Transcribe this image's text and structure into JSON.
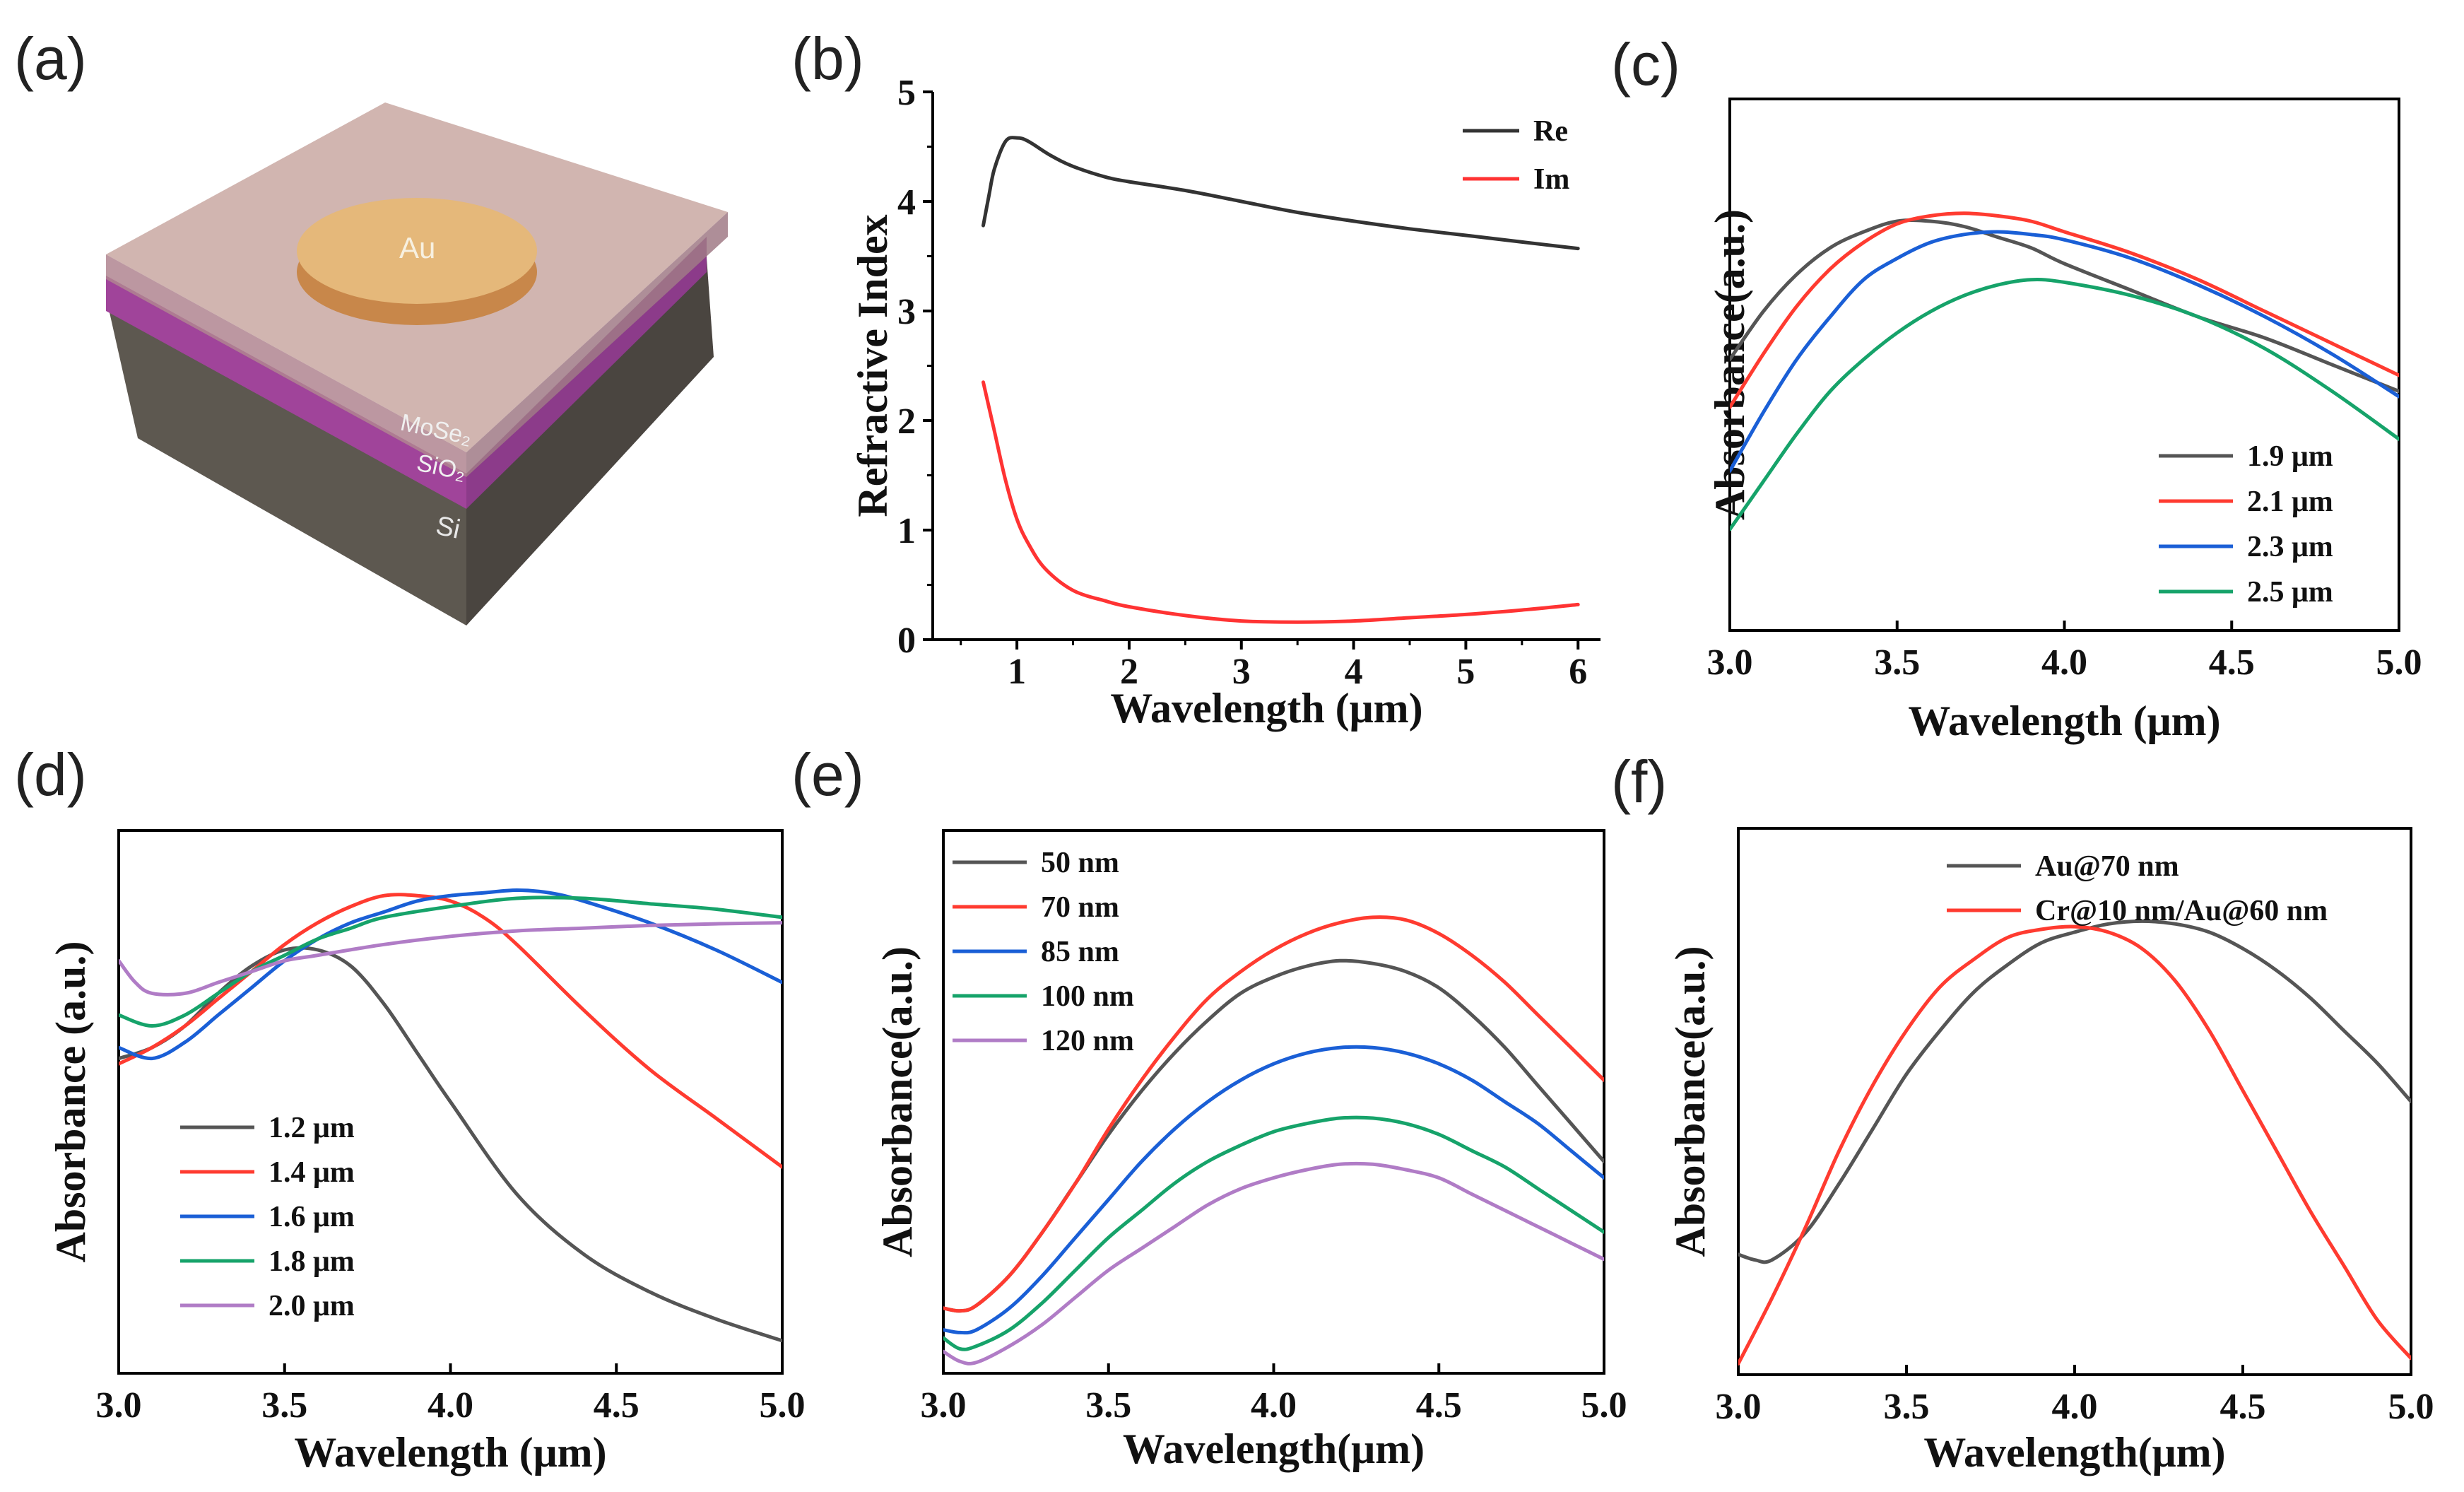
{
  "chart_data": [
    {
      "panel": "(a)",
      "type": "diagram",
      "layer_labels": [
        "Au",
        "MoSe₂",
        "SiO₂",
        "Si"
      ]
    },
    {
      "panel": "(b)",
      "type": "line",
      "xlabel": "Wavelength (μm)",
      "ylabel": "Refractive Index",
      "xlim": [
        0.25,
        6.2
      ],
      "ylim": [
        0,
        5
      ],
      "xticks": [
        1,
        2,
        3,
        4,
        5,
        6
      ],
      "yticks": [
        0,
        1,
        2,
        3,
        4,
        5
      ],
      "legend_position": "top-right",
      "series": [
        {
          "name": "Re",
          "color": "#333333",
          "x": [
            0.7,
            0.75,
            0.8,
            0.9,
            1.0,
            1.1,
            1.3,
            1.5,
            1.8,
            2.0,
            2.5,
            3.0,
            3.5,
            4.0,
            4.5,
            5.0,
            5.5,
            6.0
          ],
          "y": [
            3.78,
            4.05,
            4.3,
            4.55,
            4.58,
            4.55,
            4.42,
            4.32,
            4.22,
            4.18,
            4.1,
            4.0,
            3.9,
            3.82,
            3.75,
            3.69,
            3.63,
            3.57
          ]
        },
        {
          "name": "Im",
          "color": "#ff3333",
          "x": [
            0.7,
            0.8,
            0.9,
            1.0,
            1.1,
            1.25,
            1.5,
            1.8,
            2.0,
            2.5,
            3.0,
            3.5,
            4.0,
            4.5,
            5.0,
            5.5,
            6.0
          ],
          "y": [
            2.35,
            1.9,
            1.45,
            1.1,
            0.88,
            0.65,
            0.45,
            0.35,
            0.3,
            0.22,
            0.17,
            0.16,
            0.17,
            0.2,
            0.23,
            0.27,
            0.32
          ]
        }
      ]
    },
    {
      "panel": "(c)",
      "type": "line",
      "xlabel": "Wavelength (μm)",
      "ylabel": "Absorbance(a.u.)",
      "xlim": [
        3.0,
        5.0
      ],
      "ylim": [
        0,
        1
      ],
      "xticks": [
        "3.0",
        "3.5",
        "4.0",
        "4.5",
        "5.0"
      ],
      "legend_position": "bottom-right",
      "series": [
        {
          "name": "1.9 μm",
          "color": "#555555",
          "x": [
            3.0,
            3.1,
            3.2,
            3.3,
            3.4,
            3.5,
            3.6,
            3.7,
            3.8,
            3.9,
            4.0,
            4.2,
            4.4,
            4.6,
            4.8,
            5.0
          ],
          "y": [
            0.51,
            0.6,
            0.67,
            0.72,
            0.75,
            0.77,
            0.77,
            0.76,
            0.74,
            0.72,
            0.69,
            0.64,
            0.59,
            0.55,
            0.5,
            0.45
          ]
        },
        {
          "name": "2.1 μm",
          "color": "#ff3b30",
          "x": [
            3.0,
            3.1,
            3.2,
            3.3,
            3.4,
            3.5,
            3.6,
            3.7,
            3.8,
            3.9,
            4.0,
            4.2,
            4.4,
            4.6,
            4.8,
            5.0
          ],
          "y": [
            0.42,
            0.52,
            0.61,
            0.68,
            0.73,
            0.765,
            0.78,
            0.785,
            0.78,
            0.77,
            0.75,
            0.71,
            0.66,
            0.6,
            0.54,
            0.48
          ]
        },
        {
          "name": "2.3 μm",
          "color": "#1a5fd6",
          "x": [
            3.0,
            3.1,
            3.2,
            3.3,
            3.4,
            3.5,
            3.6,
            3.7,
            3.8,
            3.9,
            4.0,
            4.2,
            4.4,
            4.6,
            4.8,
            5.0
          ],
          "y": [
            0.3,
            0.41,
            0.51,
            0.59,
            0.66,
            0.7,
            0.73,
            0.745,
            0.75,
            0.745,
            0.735,
            0.7,
            0.65,
            0.59,
            0.52,
            0.44
          ]
        },
        {
          "name": "2.5 μm",
          "color": "#16a36a",
          "x": [
            3.0,
            3.1,
            3.2,
            3.3,
            3.4,
            3.5,
            3.6,
            3.7,
            3.8,
            3.9,
            4.0,
            4.2,
            4.4,
            4.6,
            4.8,
            5.0
          ],
          "y": [
            0.19,
            0.28,
            0.37,
            0.45,
            0.51,
            0.56,
            0.6,
            0.63,
            0.65,
            0.66,
            0.655,
            0.63,
            0.59,
            0.53,
            0.45,
            0.36
          ]
        }
      ]
    },
    {
      "panel": "(d)",
      "type": "line",
      "xlabel": "Wavelength (μm)",
      "ylabel": "Absorbance (a.u.)",
      "xlim": [
        3.0,
        5.0
      ],
      "ylim": [
        0,
        1
      ],
      "xticks": [
        "3.0",
        "3.5",
        "4.0",
        "4.5",
        "5.0"
      ],
      "legend_position": "bottom-left",
      "series": [
        {
          "name": "1.2 μm",
          "color": "#555555",
          "x": [
            3.0,
            3.1,
            3.2,
            3.3,
            3.4,
            3.5,
            3.6,
            3.7,
            3.8,
            3.9,
            4.0,
            4.2,
            4.4,
            4.6,
            4.8,
            5.0
          ],
          "y": [
            0.58,
            0.6,
            0.64,
            0.7,
            0.75,
            0.78,
            0.78,
            0.75,
            0.68,
            0.59,
            0.5,
            0.33,
            0.22,
            0.15,
            0.1,
            0.06
          ]
        },
        {
          "name": "1.4 μm",
          "color": "#ff3b30",
          "x": [
            3.0,
            3.1,
            3.2,
            3.3,
            3.4,
            3.5,
            3.6,
            3.7,
            3.8,
            3.9,
            4.0,
            4.1,
            4.2,
            4.4,
            4.6,
            4.8,
            5.0
          ],
          "y": [
            0.57,
            0.6,
            0.64,
            0.69,
            0.74,
            0.79,
            0.83,
            0.86,
            0.88,
            0.88,
            0.87,
            0.84,
            0.79,
            0.67,
            0.56,
            0.47,
            0.38
          ]
        },
        {
          "name": "1.6 μm",
          "color": "#1a5fd6",
          "x": [
            3.0,
            3.1,
            3.2,
            3.3,
            3.4,
            3.5,
            3.6,
            3.7,
            3.8,
            3.9,
            4.0,
            4.1,
            4.2,
            4.3,
            4.4,
            4.6,
            4.8,
            5.0
          ],
          "y": [
            0.6,
            0.58,
            0.61,
            0.66,
            0.71,
            0.76,
            0.8,
            0.83,
            0.85,
            0.87,
            0.88,
            0.885,
            0.89,
            0.885,
            0.87,
            0.83,
            0.78,
            0.72
          ]
        },
        {
          "name": "1.8 μm",
          "color": "#16a36a",
          "x": [
            3.0,
            3.1,
            3.2,
            3.3,
            3.4,
            3.5,
            3.6,
            3.7,
            3.8,
            4.0,
            4.2,
            4.4,
            4.6,
            4.8,
            5.0
          ],
          "y": [
            0.66,
            0.64,
            0.66,
            0.7,
            0.74,
            0.77,
            0.8,
            0.82,
            0.84,
            0.86,
            0.875,
            0.875,
            0.865,
            0.855,
            0.84
          ]
        },
        {
          "name": "2.0 μm",
          "color": "#b07cc6",
          "x": [
            3.0,
            3.05,
            3.1,
            3.2,
            3.3,
            3.4,
            3.5,
            3.6,
            3.8,
            4.0,
            4.2,
            4.4,
            4.6,
            4.8,
            5.0
          ],
          "y": [
            0.76,
            0.72,
            0.7,
            0.7,
            0.72,
            0.74,
            0.76,
            0.77,
            0.79,
            0.805,
            0.815,
            0.82,
            0.825,
            0.828,
            0.83
          ]
        }
      ]
    },
    {
      "panel": "(e)",
      "type": "line",
      "xlabel": "Wavelength(μm)",
      "ylabel": "Absorbance(a.u.)",
      "xlim": [
        3.0,
        5.0
      ],
      "ylim": [
        0,
        1
      ],
      "xticks": [
        "3.0",
        "3.5",
        "4.0",
        "4.5",
        "5.0"
      ],
      "legend_position": "top-left",
      "series": [
        {
          "name": "50 nm",
          "color": "#555555",
          "x": [
            3.0,
            3.05,
            3.1,
            3.2,
            3.3,
            3.4,
            3.5,
            3.6,
            3.7,
            3.8,
            3.9,
            4.0,
            4.1,
            4.2,
            4.3,
            4.4,
            4.5,
            4.6,
            4.7,
            4.8,
            4.9,
            5.0
          ],
          "y": [
            0.12,
            0.115,
            0.125,
            0.18,
            0.26,
            0.35,
            0.44,
            0.52,
            0.59,
            0.65,
            0.7,
            0.73,
            0.75,
            0.76,
            0.755,
            0.74,
            0.71,
            0.66,
            0.6,
            0.53,
            0.46,
            0.39
          ]
        },
        {
          "name": "70 nm",
          "color": "#ff3b30",
          "x": [
            3.0,
            3.05,
            3.1,
            3.2,
            3.3,
            3.4,
            3.5,
            3.6,
            3.7,
            3.8,
            3.9,
            4.0,
            4.1,
            4.2,
            4.3,
            4.4,
            4.5,
            4.6,
            4.7,
            4.8,
            4.9,
            5.0
          ],
          "y": [
            0.12,
            0.115,
            0.125,
            0.18,
            0.26,
            0.35,
            0.45,
            0.54,
            0.62,
            0.69,
            0.74,
            0.78,
            0.81,
            0.83,
            0.84,
            0.835,
            0.81,
            0.77,
            0.72,
            0.66,
            0.6,
            0.54
          ]
        },
        {
          "name": "85 nm",
          "color": "#1a5fd6",
          "x": [
            3.0,
            3.05,
            3.1,
            3.2,
            3.3,
            3.4,
            3.5,
            3.6,
            3.7,
            3.8,
            3.9,
            4.0,
            4.1,
            4.2,
            4.3,
            4.4,
            4.5,
            4.6,
            4.7,
            4.8,
            4.9,
            5.0
          ],
          "y": [
            0.08,
            0.075,
            0.08,
            0.12,
            0.18,
            0.25,
            0.32,
            0.39,
            0.45,
            0.5,
            0.54,
            0.57,
            0.59,
            0.6,
            0.6,
            0.59,
            0.57,
            0.54,
            0.5,
            0.46,
            0.41,
            0.36
          ]
        },
        {
          "name": "100 nm",
          "color": "#16a36a",
          "x": [
            3.0,
            3.05,
            3.1,
            3.2,
            3.3,
            3.4,
            3.5,
            3.6,
            3.7,
            3.8,
            3.9,
            4.0,
            4.1,
            4.2,
            4.3,
            4.4,
            4.5,
            4.6,
            4.7,
            4.8,
            4.9,
            5.0
          ],
          "y": [
            0.065,
            0.045,
            0.05,
            0.08,
            0.13,
            0.19,
            0.25,
            0.3,
            0.35,
            0.39,
            0.42,
            0.445,
            0.46,
            0.47,
            0.47,
            0.46,
            0.44,
            0.41,
            0.38,
            0.34,
            0.3,
            0.26
          ]
        },
        {
          "name": "120 nm",
          "color": "#b07cc6",
          "x": [
            3.0,
            3.05,
            3.1,
            3.2,
            3.3,
            3.4,
            3.5,
            3.6,
            3.7,
            3.8,
            3.9,
            4.0,
            4.1,
            4.2,
            4.3,
            4.4,
            4.5,
            4.6,
            4.7,
            4.8,
            4.9,
            5.0
          ],
          "y": [
            0.04,
            0.022,
            0.02,
            0.05,
            0.09,
            0.14,
            0.19,
            0.23,
            0.27,
            0.31,
            0.34,
            0.36,
            0.375,
            0.385,
            0.385,
            0.375,
            0.36,
            0.33,
            0.3,
            0.27,
            0.24,
            0.21
          ]
        }
      ]
    },
    {
      "panel": "(f)",
      "type": "line",
      "xlabel": "Wavelength(μm)",
      "ylabel": "Absorbance(a.u.)",
      "xlim": [
        3.0,
        5.0
      ],
      "ylim": [
        0,
        1
      ],
      "xticks": [
        "3.0",
        "3.5",
        "4.0",
        "4.5",
        "5.0"
      ],
      "legend_position": "top-right",
      "series": [
        {
          "name": "Au@70 nm",
          "color": "#555555",
          "x": [
            3.0,
            3.05,
            3.1,
            3.2,
            3.3,
            3.4,
            3.5,
            3.6,
            3.7,
            3.8,
            3.9,
            4.0,
            4.1,
            4.2,
            4.3,
            4.4,
            4.5,
            4.6,
            4.7,
            4.8,
            4.9,
            5.0
          ],
          "y": [
            0.22,
            0.21,
            0.21,
            0.26,
            0.35,
            0.45,
            0.55,
            0.63,
            0.7,
            0.75,
            0.79,
            0.81,
            0.825,
            0.83,
            0.825,
            0.81,
            0.78,
            0.74,
            0.69,
            0.63,
            0.57,
            0.5
          ]
        },
        {
          "name": "Cr@10 nm/Au@60 nm",
          "color": "#ff3b30",
          "x": [
            3.0,
            3.1,
            3.2,
            3.3,
            3.4,
            3.5,
            3.6,
            3.7,
            3.8,
            3.9,
            4.0,
            4.1,
            4.2,
            4.3,
            4.4,
            4.5,
            4.6,
            4.7,
            4.8,
            4.9,
            5.0
          ],
          "y": [
            0.02,
            0.14,
            0.27,
            0.41,
            0.53,
            0.63,
            0.71,
            0.76,
            0.8,
            0.815,
            0.82,
            0.81,
            0.78,
            0.72,
            0.63,
            0.52,
            0.41,
            0.3,
            0.2,
            0.1,
            0.03
          ]
        }
      ]
    }
  ],
  "panel_labels": [
    "(a)",
    "(b)",
    "(c)",
    "(d)",
    "(e)",
    "(f)"
  ]
}
